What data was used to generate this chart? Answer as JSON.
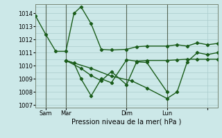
{
  "xlabel": "Pression niveau de la mer( hPa )",
  "bg_color": "#cce8e8",
  "grid_color": "#aacccc",
  "line_color": "#1a5c1a",
  "ylim": [
    1006.8,
    1014.7
  ],
  "yticks": [
    1007,
    1008,
    1009,
    1010,
    1011,
    1012,
    1013,
    1014
  ],
  "xlim": [
    0,
    18
  ],
  "xtick_positions": [
    1,
    3,
    9,
    13,
    17
  ],
  "xtick_labels": [
    "Sam",
    "Mar",
    "Dim",
    "Lun",
    ""
  ],
  "vline_positions": [
    1,
    3,
    9,
    13
  ],
  "series": [
    {
      "x": [
        0,
        1,
        2,
        3,
        3.8,
        4.5,
        5.5,
        6.5,
        7.5,
        9,
        10,
        11,
        13,
        14,
        15,
        16,
        17,
        18
      ],
      "y": [
        1013.8,
        1012.4,
        1011.1,
        1011.1,
        1014.0,
        1014.5,
        1013.2,
        1011.25,
        1011.2,
        1011.25,
        1011.45,
        1011.5,
        1011.5,
        1011.6,
        1011.5,
        1011.75,
        1011.6,
        1011.7
      ],
      "marker": "D",
      "markersize": 2.2,
      "linewidth": 1.0
    },
    {
      "x": [
        3,
        3.8,
        4.5,
        5.5,
        6.5,
        7.5,
        9,
        10,
        11,
        13,
        14,
        15,
        16,
        17,
        18
      ],
      "y": [
        1010.4,
        1010.2,
        1009.0,
        1007.7,
        1009.0,
        1008.7,
        1010.45,
        1010.35,
        1010.4,
        1010.4,
        1010.45,
        1010.5,
        1010.5,
        1010.5,
        1010.5
      ],
      "marker": "D",
      "markersize": 2.2,
      "linewidth": 1.0
    },
    {
      "x": [
        3,
        4.5,
        5.5,
        6.5,
        7.5,
        9,
        10,
        11,
        13
      ],
      "y": [
        1010.4,
        1009.8,
        1009.25,
        1008.85,
        1009.55,
        1008.55,
        1010.3,
        1010.25,
        1008.0
      ],
      "marker": "D",
      "markersize": 2.2,
      "linewidth": 1.0
    },
    {
      "x": [
        3,
        5.5,
        7.5,
        9.5,
        11,
        13,
        14,
        15,
        16,
        17,
        18
      ],
      "y": [
        1010.4,
        1009.8,
        1009.2,
        1008.85,
        1008.3,
        1007.5,
        1008.0,
        1010.3,
        1011.0,
        1010.85,
        1011.0
      ],
      "marker": "D",
      "markersize": 2.2,
      "linewidth": 1.0
    }
  ]
}
